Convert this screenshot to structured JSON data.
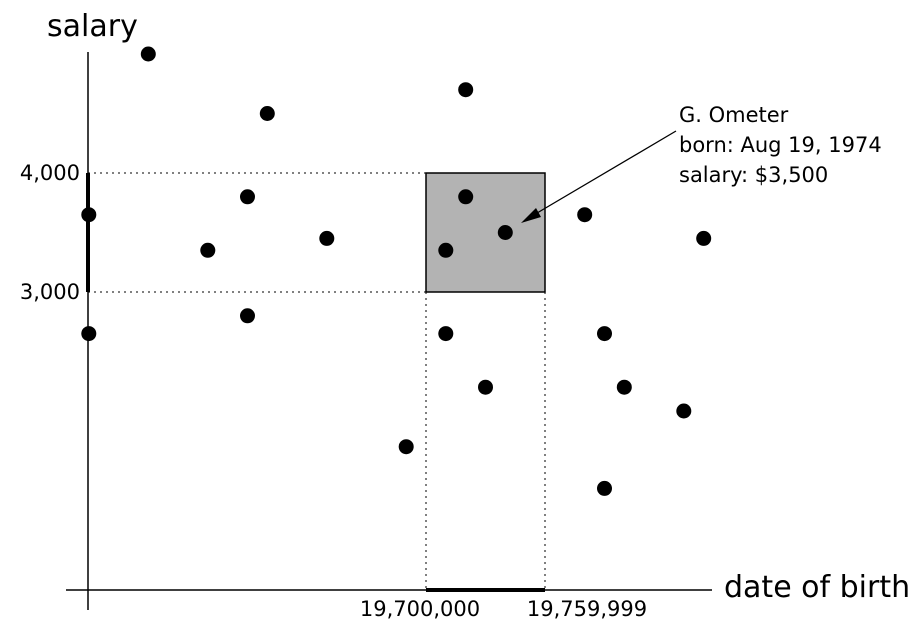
{
  "axes": {
    "y_label": "salary",
    "x_label": "date of birth"
  },
  "y_ticks": [
    "4,000",
    "3,000"
  ],
  "x_ticks": [
    "19,700,000",
    "19,759,999"
  ],
  "query_range": {
    "salary": [
      3000,
      4000
    ],
    "date_of_birth": [
      19700000,
      19759999
    ],
    "highlight_color": "#b3b3b3"
  },
  "callout": {
    "line1": "G. Ometer",
    "line2": "born: Aug 19, 1974",
    "line3": "salary: $3,500"
  },
  "points": [
    {
      "dob": 19330000,
      "salary": 3350
    },
    {
      "dob": 19430000,
      "salary": 3650
    },
    {
      "dob": 19530000,
      "salary": 3650
    },
    {
      "dob": 19590000,
      "salary": 3350
    },
    {
      "dob": 19650000,
      "salary": 3450
    },
    {
      "dob": 19460000,
      "salary": 4500
    },
    {
      "dob": 19560000,
      "salary": 5000
    },
    {
      "dob": 19350000,
      "salary": 4350
    },
    {
      "dob": 19610000,
      "salary": 3800
    },
    {
      "dob": 19620000,
      "salary": 4500
    },
    {
      "dob": 19530000,
      "salary": 2650
    },
    {
      "dob": 19610000,
      "salary": 2800
    },
    {
      "dob": 19710000,
      "salary": 3350
    },
    {
      "dob": 19720000,
      "salary": 3800
    },
    {
      "dob": 19740000,
      "salary": 3500
    },
    {
      "dob": 19720000,
      "salary": 4700
    },
    {
      "dob": 19710000,
      "salary": 2650
    },
    {
      "dob": 19690000,
      "salary": 1700
    },
    {
      "dob": 19730000,
      "salary": 2200
    },
    {
      "dob": 19780000,
      "salary": 3650
    },
    {
      "dob": 19790000,
      "salary": 2650
    },
    {
      "dob": 19800000,
      "salary": 2200
    },
    {
      "dob": 19790000,
      "salary": 1350
    },
    {
      "dob": 19830000,
      "salary": 2000
    },
    {
      "dob": 19840000,
      "salary": 3450
    }
  ]
}
